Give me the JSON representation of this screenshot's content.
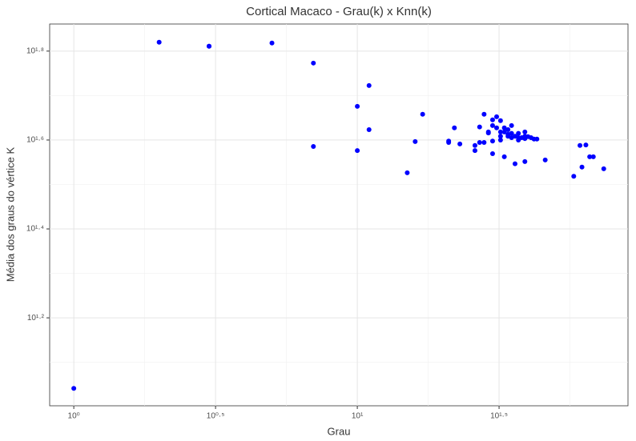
{
  "chart_data": {
    "type": "scatter",
    "title": "Cortical Macaco - Grau(k) x Knn(k)",
    "xlabel": "Grau",
    "ylabel": "Média dos graus do vértice K",
    "xscale": "log",
    "yscale": "log",
    "grid": true,
    "color": "#0000ff",
    "xlim": [
      0.822,
      90.1
    ],
    "ylim": [
      10.05,
      72.6
    ],
    "xticks": [
      {
        "value": 1,
        "label": "10⁰"
      },
      {
        "value": 3.1623,
        "label": "10⁰·⁵"
      },
      {
        "value": 10,
        "label": "10¹"
      },
      {
        "value": 31.623,
        "label": "10¹·⁵"
      }
    ],
    "yticks": [
      {
        "value": 15.849,
        "label": "10¹·²"
      },
      {
        "value": 25.119,
        "label": "10¹·⁴"
      },
      {
        "value": 39.811,
        "label": "10¹·⁶"
      },
      {
        "value": 63.096,
        "label": "10¹·⁸"
      }
    ],
    "x": [
      1,
      2,
      3,
      3,
      5,
      7,
      7,
      10,
      10,
      11,
      11,
      15,
      16,
      17,
      21,
      21,
      22,
      23,
      26,
      26,
      27,
      27,
      28,
      28,
      29,
      29,
      30,
      30,
      30,
      30,
      31,
      31,
      32,
      32,
      32,
      32,
      33,
      33,
      33,
      34,
      34,
      34,
      35,
      35,
      35,
      36,
      36,
      37,
      37,
      37,
      38,
      39,
      39,
      39,
      39,
      40,
      41,
      42,
      43,
      46,
      58,
      61,
      62,
      64,
      66,
      68,
      74
    ],
    "values": [
      11.0,
      66.05,
      64.7,
      64.7,
      65.8,
      59.3,
      38.5,
      47.4,
      37.7,
      52.8,
      42.0,
      33.6,
      39.5,
      45.5,
      39.6,
      39.3,
      42.4,
      39.0,
      38.7,
      37.7,
      42.6,
      39.3,
      45.5,
      39.3,
      41.3,
      41.5,
      42.9,
      37.1,
      44.2,
      39.6,
      44.9,
      42.4,
      41.5,
      39.8,
      40.6,
      44.0,
      36.5,
      42.4,
      41.5,
      40.6,
      42.0,
      41.0,
      42.9,
      40.3,
      41.2,
      35.2,
      40.6,
      40.3,
      39.8,
      41.2,
      40.3,
      41.5,
      40.6,
      35.6,
      40.1,
      40.5,
      40.3,
      40.0,
      40.0,
      35.9,
      33.0,
      38.7,
      34.6,
      38.8,
      36.5,
      36.5,
      34.3
    ]
  }
}
